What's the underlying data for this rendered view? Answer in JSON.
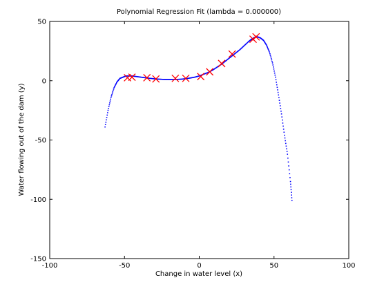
{
  "chart_data": {
    "type": "scatter",
    "title": "Polynomial Regression Fit (lambda = 0.000000)",
    "xlabel": "Change in water level (x)",
    "ylabel": "Water flowing out of the dam (y)",
    "xlim": [
      -100,
      100
    ],
    "ylim": [
      -150,
      50
    ],
    "xticks": [
      -100,
      -50,
      0,
      50,
      100
    ],
    "yticks": [
      -150,
      -100,
      -50,
      0,
      50
    ],
    "grid": false,
    "series": [
      {
        "kind": "fit_curve",
        "color": "#0000ff",
        "marker": "dot",
        "x": [
          -63,
          -61,
          -59,
          -57,
          -55,
          -53,
          -51,
          -49,
          -47,
          -45,
          -42,
          -39,
          -36,
          -33,
          -30,
          -27,
          -24,
          -21,
          -18,
          -15,
          -12,
          -9,
          -6,
          -3,
          0,
          3,
          6,
          9,
          12,
          15,
          18,
          21,
          24,
          27,
          30,
          33,
          35,
          37,
          39,
          41,
          43,
          45,
          47,
          49,
          51,
          53,
          55,
          57,
          59,
          61,
          62
        ],
        "y": [
          -39,
          -25,
          -14,
          -6,
          -1,
          2,
          3,
          4,
          4,
          4,
          3.5,
          3,
          2.5,
          2,
          1.6,
          1.3,
          1.1,
          1,
          1,
          1.1,
          1.3,
          1.7,
          2.3,
          3,
          4,
          5.5,
          7,
          9,
          11.5,
          14,
          17,
          20,
          23,
          26,
          29.5,
          33,
          35,
          36.5,
          37,
          36,
          34,
          30,
          24,
          15,
          3,
          -12,
          -28,
          -46,
          -62,
          -85,
          -101
        ]
      },
      {
        "kind": "training_points",
        "color": "#ff0000",
        "marker": "x",
        "x": [
          -48,
          -45,
          -35,
          -29,
          -16,
          -9,
          1,
          7,
          15,
          22,
          36,
          38
        ],
        "y": [
          2.5,
          3,
          2.5,
          1.5,
          2,
          2,
          3.5,
          7.5,
          14.5,
          22.5,
          35,
          37
        ]
      }
    ]
  }
}
